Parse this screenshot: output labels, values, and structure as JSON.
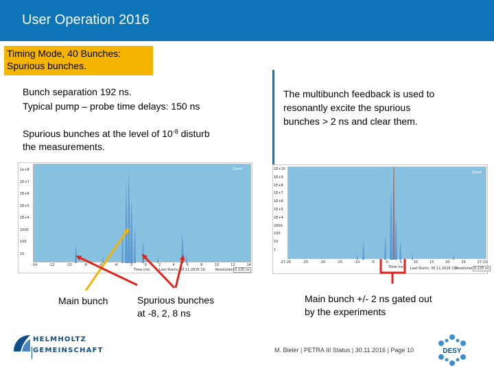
{
  "slide": {
    "title": "User Operation 2016",
    "callout": {
      "line1": "Timing Mode, 40 Bunches:",
      "line2": "Spurious bunches."
    },
    "left_text": {
      "line1": "Bunch separation 192 ns.",
      "line2": "Typical pump – probe time delays: 150 ns",
      "line3_pre": "Spurious bunches at the level of 10",
      "line3_sup": "-8",
      "line3_post": " disturb",
      "line4": "the measurements."
    },
    "right_text": {
      "line1": "The multibunch feedback is used to",
      "line2": "resonantly excite the spurious",
      "line3": "bunches > 2 ns and clear them."
    },
    "annotations": {
      "main_bunch": "Main bunch",
      "spurious_line1": "Spurious bunches",
      "spurious_line2": "at -8, 2, 8 ns",
      "gated_line1": "Main bunch +/- 2 ns gated out",
      "gated_line2": "by the experiments"
    },
    "footer": "M. Bieler | PETRA III Status | 30.11.2016 | Page 10",
    "logo": {
      "line1": "HELMHOLTZ",
      "line2": "GEMEINSCHAFT",
      "desy": "DESY"
    }
  },
  "plots": {
    "left": {
      "legend": "Zoom",
      "y_ticks": [
        "1e+8",
        "1E+7",
        "1E+6",
        "1E+5",
        "1E+4",
        "1000",
        "100",
        "10"
      ],
      "x_ticks": [
        "-14",
        "-12",
        "-10",
        "-8",
        "-6",
        "-4",
        "-2",
        "0",
        "2",
        "4",
        "6",
        "8",
        "10",
        "12",
        "14"
      ],
      "x_label": "Time (ns)",
      "status": "Last Starts: 30.11.2016 10:",
      "resolution_label": "Resolution:",
      "resolution_value": "0.125 ns"
    },
    "right": {
      "legend": "Zoom",
      "y_ticks": [
        "1E+10",
        "1E+9",
        "1E+8",
        "1E+7",
        "1E+6",
        "1E+5",
        "1E+4",
        "2000",
        "100",
        "10",
        "1"
      ],
      "x_ticks": [
        "-27.26",
        "-25",
        "-20",
        "-15",
        "-10",
        "-5",
        "0",
        "5",
        "10",
        "15",
        "20",
        "25",
        "27.13"
      ],
      "x_label": "Time (ns)",
      "status": "Last Starts: 30.11.2016 10:",
      "resolution_label": "Resolution:",
      "resolution_value": "0.125 ns"
    }
  },
  "colors": {
    "title_bar": "#0d74b8",
    "callout": "#f4b400",
    "plot_bg": "#87c2e0",
    "spectrum": "#5f9bd0",
    "marker": "#e24b1f",
    "arrow_yellow": "#f4b400",
    "arrow_red": "#e2231a"
  }
}
